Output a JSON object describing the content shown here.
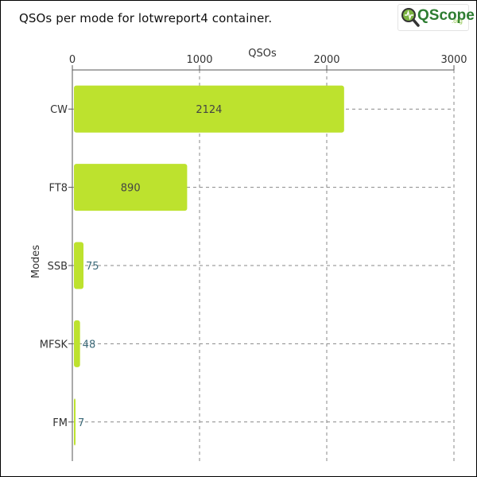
{
  "chart_data": {
    "type": "bar",
    "orientation": "horizontal",
    "title": "QSOs per mode for lotwreport4 container.",
    "xlabel": "QSOs",
    "ylabel": "Modes",
    "xlim": [
      0,
      3000
    ],
    "xticks": [
      "0",
      "1000",
      "2000",
      "3000"
    ],
    "x_axis_position": "top",
    "grid": true,
    "categories": [
      "CW",
      "FT8",
      "SSB",
      "MFSK",
      "FM"
    ],
    "values": [
      2124,
      890,
      75,
      48,
      7
    ],
    "data_labels": [
      "2124",
      "890",
      "75",
      "48",
      "7"
    ],
    "bar_color": "#bde22e"
  },
  "logo": {
    "name": "QScope",
    "suffix": ".org"
  }
}
